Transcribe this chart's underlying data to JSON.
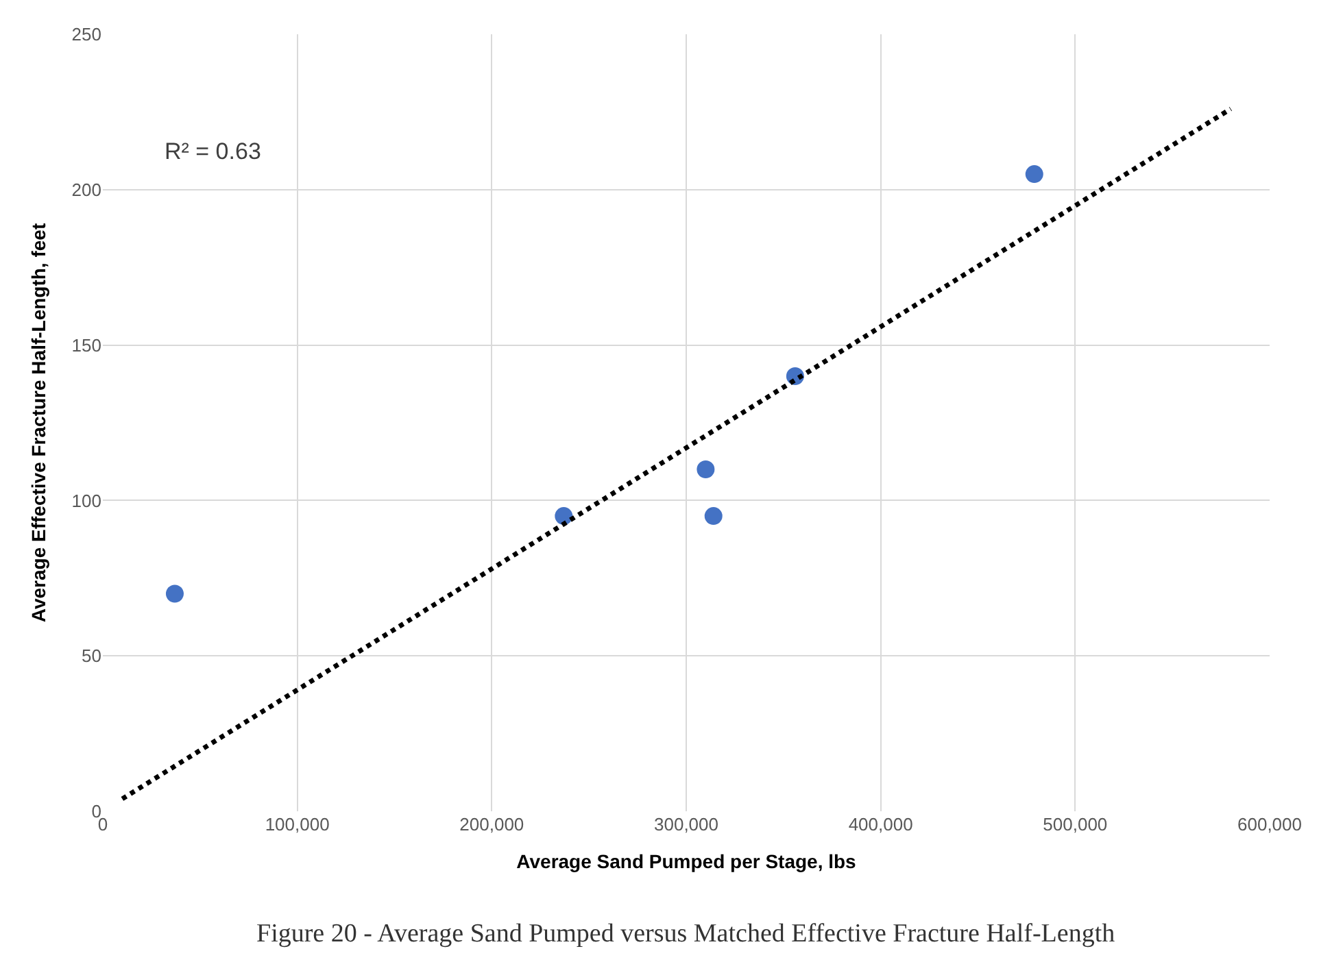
{
  "chart_data": {
    "type": "scatter",
    "xlabel": "Average Sand Pumped per Stage, lbs",
    "ylabel": "Average Effective Fracture Half-Length, feet",
    "x": [
      37000,
      237000,
      310000,
      314000,
      356000,
      479000
    ],
    "series": [
      {
        "color": "#4472c4",
        "values": [
          70,
          95,
          110,
          95,
          140,
          205
        ],
        "marker": "circle"
      },
      {
        "type": "line",
        "color": "#000000",
        "x": [
          10000,
          580000
        ],
        "values": [
          4,
          226
        ],
        "line_style": "dotted",
        "marker": "none"
      }
    ],
    "xlim": [
      0,
      600000
    ],
    "xticks": [
      {
        "value": 0,
        "label": "0"
      },
      {
        "value": 100000,
        "label": "100,000"
      },
      {
        "value": 200000,
        "label": "200,000"
      },
      {
        "value": 300000,
        "label": "300,000"
      },
      {
        "value": 400000,
        "label": "400,000"
      },
      {
        "value": 500000,
        "label": "500,000"
      },
      {
        "value": 600000,
        "label": "600,000"
      }
    ],
    "ylim": [
      0,
      250
    ],
    "yticks": [
      0,
      50,
      100,
      150,
      200,
      250
    ],
    "grid": true,
    "annotations": [
      {
        "text": "R² = 0.63"
      },
      {
        "text": "Figure 20 - Average Sand Pumped versus Matched Effective Fracture Half-Length"
      }
    ]
  }
}
